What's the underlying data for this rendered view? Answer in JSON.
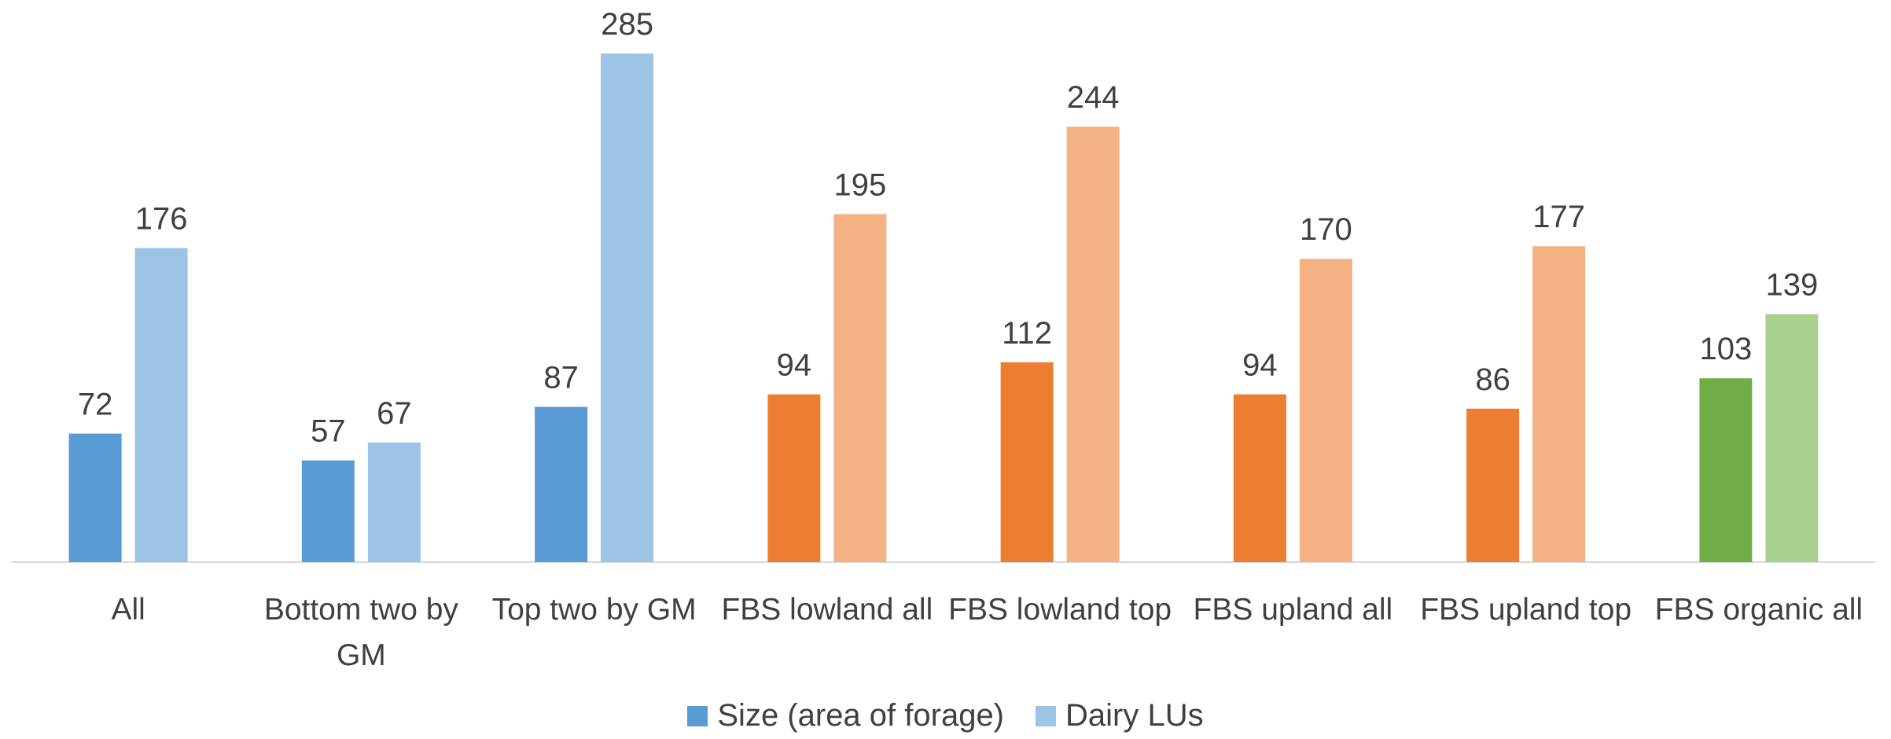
{
  "chart_data": {
    "type": "bar",
    "categories": [
      "All",
      "Bottom two by GM",
      "Top two by GM",
      "FBS lowland all",
      "FBS lowland top",
      "FBS upland all",
      "FBS upland top",
      "FBS organic all"
    ],
    "series": [
      {
        "name": "Size (area of forage)",
        "color": "#5b9bd5",
        "colors": [
          "#5b9bd5",
          "#5b9bd5",
          "#5b9bd5",
          "#ed7d31",
          "#ed7d31",
          "#ed7d31",
          "#ed7d31",
          "#70ad47"
        ],
        "values": [
          72,
          57,
          87,
          94,
          112,
          94,
          86,
          103
        ]
      },
      {
        "name": "Dairy LUs",
        "color": "#9dc3e6",
        "colors": [
          "#9dc3e6",
          "#9dc3e6",
          "#9dc3e6",
          "#f4b183",
          "#f4b183",
          "#f4b183",
          "#f4b183",
          "#a9d18e"
        ],
        "values": [
          176,
          67,
          285,
          195,
          244,
          170,
          177,
          139
        ]
      }
    ],
    "ylim": [
      0,
      315
    ],
    "legend": "bottom"
  }
}
